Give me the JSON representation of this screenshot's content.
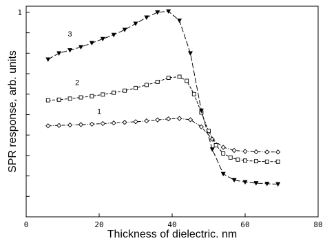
{
  "chart_data": {
    "type": "line",
    "xlabel": "Thickness of dielectric. nm",
    "ylabel": "SPR response, arb. units",
    "xlim": [
      0,
      80
    ],
    "ylim": [
      0,
      1.03
    ],
    "x_ticks": [
      0,
      20,
      40,
      60,
      80
    ],
    "x_tick_labels": [
      "0",
      "20",
      "40",
      "60",
      "80"
    ],
    "y_ticks_labeled": [
      {
        "value": 1,
        "label": "1"
      }
    ],
    "y_minor_ticks": [
      0.1,
      0.2,
      0.3,
      0.4,
      0.5,
      0.6,
      0.7,
      0.8,
      0.9
    ],
    "grid": false,
    "series": [
      {
        "name": "1",
        "marker": "diamond",
        "dash": "dash-dot",
        "x": [
          6,
          9,
          12,
          15,
          18,
          21,
          24,
          27,
          30,
          33,
          36,
          39,
          42,
          45,
          48,
          51,
          54,
          57,
          60,
          63,
          66,
          69
        ],
        "y": [
          0.445,
          0.447,
          0.449,
          0.451,
          0.453,
          0.456,
          0.459,
          0.462,
          0.465,
          0.469,
          0.474,
          0.479,
          0.481,
          0.475,
          0.44,
          0.38,
          0.34,
          0.325,
          0.32,
          0.318,
          0.317,
          0.317
        ]
      },
      {
        "name": "2",
        "marker": "square",
        "dash": "dash",
        "x": [
          6,
          9,
          12,
          15,
          18,
          21,
          24,
          27,
          30,
          33,
          36,
          39,
          42,
          44,
          46,
          48,
          50,
          52,
          54,
          56,
          58,
          60,
          63,
          66,
          69
        ],
        "y": [
          0.57,
          0.573,
          0.578,
          0.584,
          0.59,
          0.598,
          0.607,
          0.617,
          0.63,
          0.645,
          0.66,
          0.68,
          0.685,
          0.665,
          0.6,
          0.51,
          0.42,
          0.35,
          0.31,
          0.29,
          0.28,
          0.275,
          0.272,
          0.27,
          0.27
        ]
      },
      {
        "name": "3",
        "marker": "triangle-down",
        "dash": "long-dash",
        "x": [
          6,
          9,
          12,
          15,
          18,
          21,
          24,
          27,
          30,
          33,
          36,
          39,
          42,
          45,
          48,
          51,
          54,
          57,
          60,
          63,
          66,
          69
        ],
        "y": [
          0.77,
          0.8,
          0.815,
          0.83,
          0.85,
          0.87,
          0.89,
          0.915,
          0.945,
          0.975,
          1.0,
          1.005,
          0.96,
          0.8,
          0.52,
          0.33,
          0.21,
          0.18,
          0.17,
          0.165,
          0.162,
          0.16
        ]
      }
    ]
  }
}
